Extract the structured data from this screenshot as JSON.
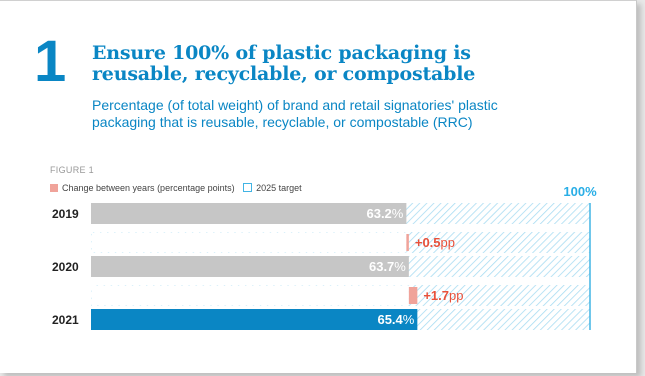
{
  "header": {
    "number": "1",
    "title_line1": "Ensure 100% of plastic packaging is",
    "title_line2": "reusable, recyclable, or compostable",
    "subtitle_line1": "Percentage (of total weight) of brand and retail signatories' plastic",
    "subtitle_line2": "packaging that is reusable, recyclable, or compostable (RRC)"
  },
  "figure_label": "FIGURE 1",
  "legend": {
    "change": "Change between years (percentage points)",
    "target": "2025 target"
  },
  "colors": {
    "accent": "#0a86c4",
    "bar_past": "#c6c6c6",
    "bar_current": "#0a86c4",
    "change": "#f0a39a",
    "change_text": "#e8503a",
    "target": "#41b4e4"
  },
  "chart_data": {
    "type": "bar",
    "orientation": "horizontal",
    "categories": [
      "2019",
      "2020",
      "2021"
    ],
    "values": [
      63.2,
      63.7,
      65.4
    ],
    "value_labels": [
      "63.2",
      "63.7",
      "65.4"
    ],
    "unit_suffix": "%",
    "changes": [
      {
        "between": [
          "2019",
          "2020"
        ],
        "value": 0.5,
        "label": "+0.5",
        "unit": "pp"
      },
      {
        "between": [
          "2020",
          "2021"
        ],
        "value": 1.7,
        "label": "+1.7",
        "unit": "pp"
      }
    ],
    "target": {
      "value": 100,
      "label": "100%"
    },
    "xlim": [
      0,
      100
    ],
    "grid": false
  }
}
